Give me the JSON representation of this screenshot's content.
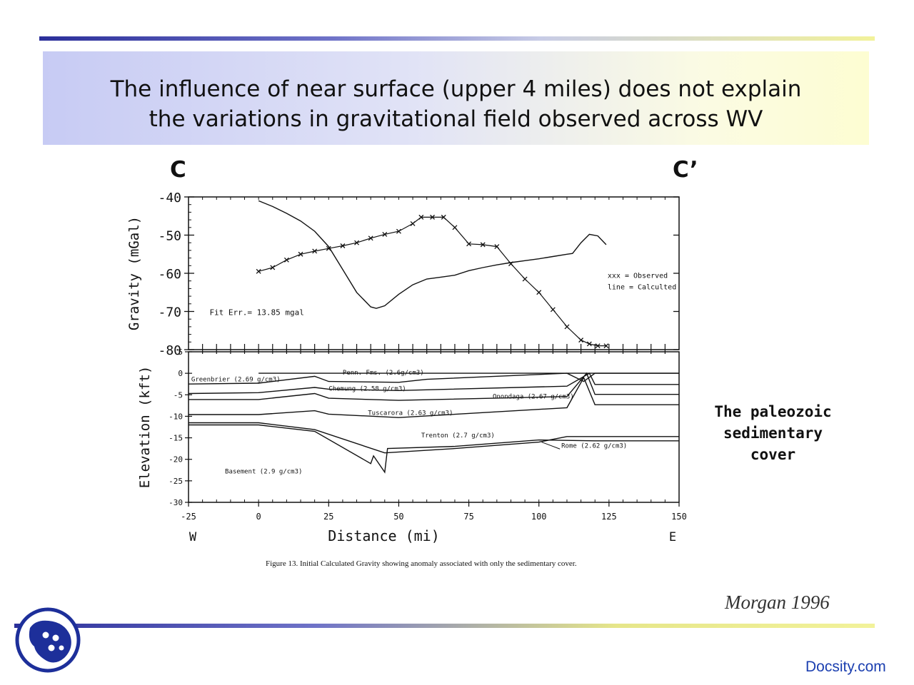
{
  "slide": {
    "title_line1": "The influence of near surface (upper 4 miles) does not explain",
    "title_line2": "the variations in gravitational field observed across WV",
    "label_left": "C",
    "label_right": "C’",
    "side_note": [
      "The paleozoic",
      "sedimentary",
      "cover"
    ],
    "citation": "Morgan 1996",
    "footer": "Docsity.com",
    "logo_icon": "docsity-logo-icon"
  },
  "colors": {
    "accent_blue": "#2b2f9a",
    "accent_yellow": "#f2f29a",
    "footer_link": "#1b3fb0"
  },
  "chart_data": {
    "type": "line",
    "caption": "Figure 13.  Initial Calculated Gravity showing anomaly associated with only the sedimentary cover.",
    "xlabel": "Distance (mi)",
    "xlim": [
      -25,
      150
    ],
    "xticks": [
      -25,
      0,
      25,
      50,
      75,
      100,
      125,
      150
    ],
    "x_direction_labels": {
      "left": "W",
      "right": "E"
    },
    "gravity_panel": {
      "ylabel": "Gravity (mGal)",
      "ylim": [
        -80,
        -40
      ],
      "yticks": [
        -40,
        -50,
        -60,
        -70,
        -80
      ],
      "annotation": "Fit Err.= 13.85 mgal",
      "legend": [
        "xxx = Observed",
        "line = Calculted"
      ],
      "legend_position": "right",
      "series": [
        {
          "name": "Observed",
          "marker": "x",
          "x": [
            0,
            5,
            10,
            15,
            20,
            25,
            30,
            35,
            40,
            45,
            50,
            55,
            58,
            62,
            66,
            70,
            75,
            80,
            85,
            90,
            95,
            100,
            105,
            110,
            115,
            118,
            121,
            124
          ],
          "y": [
            -59.5,
            -58.5,
            -56.5,
            -55,
            -54.2,
            -53.5,
            -52.8,
            -52,
            -50.8,
            -49.8,
            -49,
            -47,
            -45.3,
            -45.3,
            -45.3,
            -48,
            -52.3,
            -52.5,
            -53,
            -57.5,
            -61.5,
            -65,
            -69.5,
            -74,
            -77.5,
            -78.5,
            -79,
            -79
          ]
        },
        {
          "name": "Calculated",
          "marker": "line",
          "x": [
            0,
            5,
            10,
            15,
            20,
            25,
            30,
            35,
            40,
            42,
            45,
            50,
            55,
            60,
            65,
            70,
            75,
            80,
            85,
            90,
            95,
            100,
            105,
            110,
            112,
            115,
            118,
            121,
            124
          ],
          "y": [
            -41,
            -42.5,
            -44.3,
            -46.3,
            -49,
            -53,
            -59,
            -65,
            -68.8,
            -69.2,
            -68.5,
            -65.5,
            -63,
            -61.5,
            -61,
            -60.5,
            -59.3,
            -58.5,
            -57.8,
            -57.2,
            -56.7,
            -56.2,
            -55.6,
            -55,
            -54.8,
            -52,
            -49.8,
            -50.2,
            -52.5
          ]
        }
      ]
    },
    "elevation_panel": {
      "ylabel": "Elevation (kft)",
      "ylim": [
        -30,
        5
      ],
      "yticks": [
        5,
        0,
        -5,
        -10,
        -15,
        -20,
        -25,
        -30
      ],
      "layers": [
        {
          "name": "Penn. Fms. (2.6g/cm3)",
          "x": [
            0,
            20,
            35,
            60,
            110,
            118,
            150
          ],
          "y": [
            0,
            0,
            0,
            0,
            0,
            0,
            0
          ]
        },
        {
          "name": "Greenbrier (2.69 g/cm3)",
          "x": [
            -25,
            0,
            20,
            25,
            50,
            60,
            110,
            116,
            120,
            150
          ],
          "y": [
            -2.5,
            -2.3,
            -0.7,
            -1.9,
            -2.1,
            -1.4,
            0,
            -1.9,
            0,
            0
          ]
        },
        {
          "name": "Chemung (2.58 g/cm3)",
          "x": [
            -25,
            0,
            20,
            25,
            50,
            110,
            118,
            120,
            150
          ],
          "y": [
            -4.7,
            -4.5,
            -3.3,
            -3.7,
            -4,
            -3,
            0,
            -2.6,
            -2.6
          ]
        },
        {
          "name": "Onondaga (2.67 g/cm3)",
          "x": [
            -25,
            0,
            20,
            25,
            50,
            110,
            117,
            120,
            150
          ],
          "y": [
            -6.1,
            -6.1,
            -4.7,
            -5.8,
            -6.3,
            -5.4,
            0,
            -4.9,
            -4.9
          ]
        },
        {
          "name": "Tuscarora (2.63 g/cm3)",
          "x": [
            -25,
            0,
            20,
            25,
            50,
            110,
            116,
            120,
            150
          ],
          "y": [
            -9.6,
            -9.6,
            -8.7,
            -9.5,
            -10.3,
            -8,
            -1,
            -7.3,
            -7.3
          ]
        },
        {
          "name": "Trenton (2.7 g/cm3)",
          "x": [
            -25,
            0,
            20,
            45,
            70,
            100,
            110,
            150
          ],
          "y": [
            -11.5,
            -11.5,
            -13.1,
            -18.5,
            -17.5,
            -16,
            -14.7,
            -14.7
          ]
        },
        {
          "name": "Rome (2.62 g/cm3)",
          "x": [
            -25,
            0,
            20,
            40,
            41,
            45,
            46,
            70,
            100,
            120,
            150
          ],
          "y": [
            -12,
            -12,
            -13.5,
            -21,
            -19.2,
            -23,
            -17.5,
            -17,
            -15.5,
            -15.7,
            -15.7
          ]
        },
        {
          "name": "Basement (2.9 g/cm3)",
          "x": [],
          "y": []
        }
      ]
    }
  }
}
